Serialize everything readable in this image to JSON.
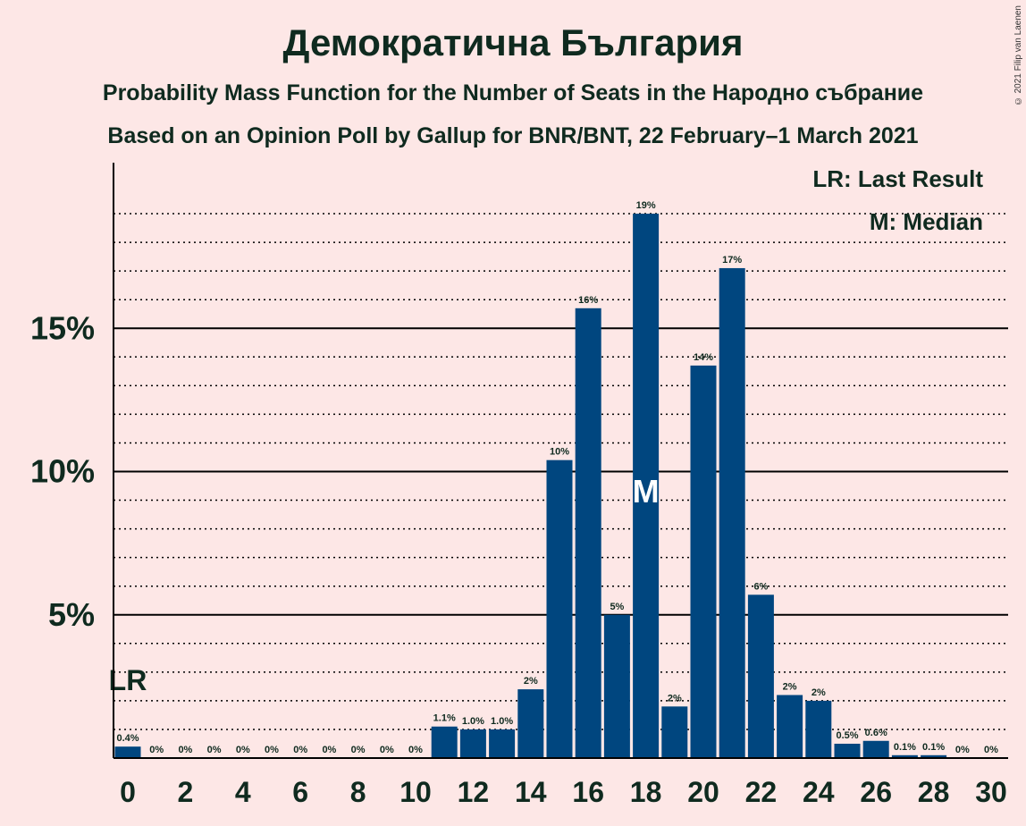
{
  "title": "Демократична България",
  "subtitle1": "Probability Mass Function for the Number of Seats in the Народно събрание",
  "subtitle2": "Based on an Opinion Poll by Gallup for BNR/BNT, 22 February–1 March 2021",
  "copyright": "© 2021 Filip van Laenen",
  "legend": {
    "lr": "LR: Last Result",
    "m": "M: Median"
  },
  "colors": {
    "background": "#fde7e6",
    "bar": "#00467f",
    "text": "#0f2a1f"
  },
  "chart_data": {
    "type": "bar",
    "x": [
      0,
      1,
      2,
      3,
      4,
      5,
      6,
      7,
      8,
      9,
      10,
      11,
      12,
      13,
      14,
      15,
      16,
      17,
      18,
      19,
      20,
      21,
      22,
      23,
      24,
      25,
      26,
      27,
      28,
      29,
      30
    ],
    "values": [
      0.4,
      0,
      0,
      0,
      0,
      0,
      0,
      0,
      0,
      0,
      0,
      1.1,
      1.0,
      1.0,
      2.4,
      10.4,
      15.7,
      5.0,
      19.0,
      1.8,
      13.7,
      17.1,
      5.7,
      2.2,
      2.0,
      0.5,
      0.6,
      0.1,
      0.1,
      0,
      0
    ],
    "bar_labels": [
      "0.4%",
      "0%",
      "0%",
      "0%",
      "0%",
      "0%",
      "0%",
      "0%",
      "0%",
      "0%",
      "0%",
      "1.1%",
      "1.0%",
      "1.0%",
      "2%",
      "10%",
      "16%",
      "5%",
      "19%",
      "2%",
      "14%",
      "17%",
      "6%",
      "2%",
      "2%",
      "0.5%",
      "0.6%",
      "0.1%",
      "0.1%",
      "0%",
      "0%"
    ],
    "x_tick_labels": [
      "0",
      "2",
      "4",
      "6",
      "8",
      "10",
      "12",
      "14",
      "16",
      "18",
      "20",
      "22",
      "24",
      "26",
      "28",
      "30"
    ],
    "y_tick_labels": [
      "5%",
      "10%",
      "15%"
    ],
    "y_tick_values": [
      5,
      10,
      15
    ],
    "ylim": [
      0,
      20
    ],
    "last_result_x": 0,
    "last_result_label": "LR",
    "median_x": 18,
    "median_label": "M",
    "grid": "solid major lines at 5% steps, dotted minor lines at 1% steps",
    "legend_placement": "top-right",
    "xlabel": "",
    "ylabel": ""
  }
}
